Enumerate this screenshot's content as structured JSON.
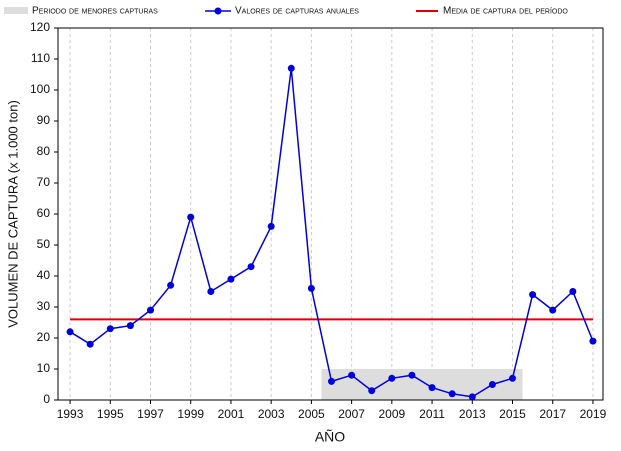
{
  "chart_data": {
    "type": "line",
    "x_label": "AÑO",
    "y_label": "VOLUMEN  DE  CAPTURA (x 1.000 ton)",
    "x": [
      1993,
      1994,
      1995,
      1996,
      1997,
      1998,
      1999,
      2000,
      2001,
      2002,
      2003,
      2004,
      2005,
      2006,
      2007,
      2008,
      2009,
      2010,
      2011,
      2012,
      2013,
      2014,
      2015,
      2016,
      2017,
      2018,
      2019
    ],
    "series": [
      {
        "name": "Valores de capturas anuales",
        "color": "#0000dd",
        "values": [
          22,
          18,
          23,
          24,
          29,
          37,
          59,
          35,
          39,
          43,
          56,
          107,
          36,
          6,
          8,
          3,
          7,
          8,
          4,
          2,
          1,
          5,
          7,
          34,
          29,
          35,
          19
        ]
      }
    ],
    "mean_line": {
      "name": "Media de captura del período",
      "color": "#dd0000",
      "value": 26,
      "x": [
        1993,
        2019
      ]
    },
    "shaded_region": {
      "name": "Periodo de menores capturas",
      "color": "#dddddd",
      "x": [
        2005.5,
        2015.5
      ],
      "y": [
        0,
        10
      ]
    },
    "xlim": [
      1992.4,
      2019.5
    ],
    "xticks": [
      1993,
      1995,
      1997,
      1999,
      2001,
      2003,
      2005,
      2007,
      2009,
      2011,
      2013,
      2015,
      2017,
      2019
    ],
    "ylim": [
      0,
      120
    ],
    "yticks": [
      0,
      10,
      20,
      30,
      40,
      50,
      60,
      70,
      80,
      90,
      100,
      110,
      120
    ],
    "grid": true
  }
}
